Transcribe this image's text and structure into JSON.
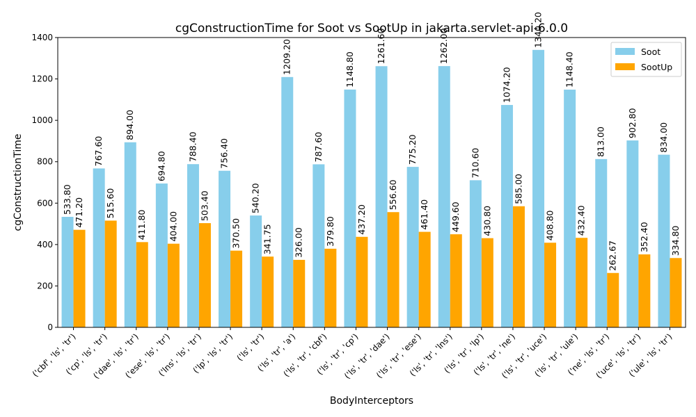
{
  "chart_data": {
    "type": "bar",
    "title": "cgConstructionTime for Soot vs SootUp in jakarta.servlet-api-6.0.0",
    "xlabel": "BodyInterceptors",
    "ylabel": "cgConstructionTime",
    "ylim": [
      0,
      1400
    ],
    "yticks": [
      0,
      200,
      400,
      600,
      800,
      1000,
      1200,
      1400
    ],
    "grid": false,
    "legend_position": "top-right",
    "categories": [
      "('cbf', 'ls', 'tr')",
      "('cp', 'ls', 'tr')",
      "('dae', 'ls', 'tr')",
      "('ese', 'ls', 'tr')",
      "('lns', 'ls', 'tr')",
      "('lp', 'ls', 'tr')",
      "('ls', 'tr')",
      "('ls', 'tr', 'a')",
      "('ls', 'tr', 'cbf')",
      "('ls', 'tr', 'cp')",
      "('ls', 'tr', 'dae')",
      "('ls', 'tr', 'ese')",
      "('ls', 'tr', 'lns')",
      "('ls', 'tr', 'lp')",
      "('ls', 'tr', 'ne')",
      "('ls', 'tr', 'uce')",
      "('ls', 'tr', 'ule')",
      "('ne', 'ls', 'tr')",
      "('uce', 'ls', 'tr')",
      "('ule', 'ls', 'tr')"
    ],
    "series": [
      {
        "name": "Soot",
        "color": "#87CEEB",
        "values": [
          533.8,
          767.6,
          894.0,
          694.8,
          788.4,
          756.4,
          540.2,
          1209.2,
          787.6,
          1148.8,
          1261.6,
          775.2,
          1262.0,
          710.6,
          1074.2,
          1340.2,
          1148.4,
          813.0,
          902.8,
          834.0
        ],
        "labels": [
          "533.80",
          "767.60",
          "894.00",
          "694.80",
          "788.40",
          "756.40",
          "540.20",
          "1209.20",
          "787.60",
          "1148.80",
          "1261.60",
          "775.20",
          "1262.00",
          "710.60",
          "1074.20",
          "1340.20",
          "1148.40",
          "813.00",
          "902.80",
          "834.00"
        ]
      },
      {
        "name": "SootUp",
        "color": "#FFA500",
        "values": [
          471.2,
          515.6,
          411.8,
          404.0,
          503.4,
          370.5,
          341.75,
          326.0,
          379.8,
          437.2,
          556.6,
          461.4,
          449.6,
          430.8,
          585.0,
          408.8,
          432.4,
          262.67,
          352.4,
          334.8
        ],
        "labels": [
          "471.20",
          "515.60",
          "411.80",
          "404.00",
          "503.40",
          "370.50",
          "341.75",
          "326.00",
          "379.80",
          "437.20",
          "556.60",
          "461.40",
          "449.60",
          "430.80",
          "585.00",
          "408.80",
          "432.40",
          "262.67",
          "352.40",
          "334.80"
        ]
      }
    ]
  }
}
